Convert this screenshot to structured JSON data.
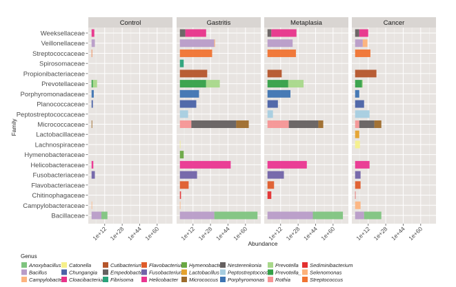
{
  "chart_data": {
    "type": "bar",
    "orientation": "horizontal",
    "stacked": true,
    "xlabel": "Abundance",
    "ylabel": "Family",
    "legend_title": "Genus",
    "legend_position": "bottom",
    "x_scale_note": "values are exponents (log10 abundance) per stacked segment",
    "xlim": [
      -3,
      74
    ],
    "xticks": [
      12,
      28,
      44,
      60
    ],
    "xtick_labels": [
      "1e+12",
      "1e+28",
      "1e+44",
      "1e+60"
    ],
    "facets": [
      "Control",
      "Gastritis",
      "Metaplasia",
      "Cancer"
    ],
    "families": [
      "Weeksellaceae",
      "Veillonellaceae",
      "Streptococcaceae",
      "Spirosomaceae",
      "Propionibacteriaceae",
      "Prevotellaceae",
      "Porphyromonadaceae",
      "Planococcaceae",
      "Peptostreptococcaceae",
      "Micrococcaceae",
      "Lactobacillaceae",
      "Lachnospiraceae",
      "Hymenobacteraceae",
      "Helicobacteraceae",
      "Fusobacteriaceae",
      "Flavobacteriaceae",
      "Chitinophagaceae",
      "Campylobacteraceae",
      "Bacillaceae"
    ],
    "genera": [
      {
        "name": "Anoxybacillus",
        "color": "#7fc47f"
      },
      {
        "name": "Bacillus",
        "color": "#b89cc8"
      },
      {
        "name": "Campylobacter",
        "color": "#fdb47f"
      },
      {
        "name": "Catonella",
        "color": "#f6f08a"
      },
      {
        "name": "Chungangia",
        "color": "#4a62a6"
      },
      {
        "name": "Cloacibacterium",
        "color": "#e8338a"
      },
      {
        "name": "Cutibacterium",
        "color": "#b5552b"
      },
      {
        "name": "Empedobacter",
        "color": "#666060"
      },
      {
        "name": "Fibrisoma",
        "color": "#2aa27a"
      },
      {
        "name": "Flavobacterium",
        "color": "#df5c2b"
      },
      {
        "name": "Fusobacterium",
        "color": "#7163a8"
      },
      {
        "name": "Helicobacter",
        "color": "#ea3590"
      },
      {
        "name": "Hymenobacter",
        "color": "#6aa843"
      },
      {
        "name": "Lactobacillus",
        "color": "#e5a22d"
      },
      {
        "name": "Micrococcus",
        "color": "#9e6b2b"
      },
      {
        "name": "Nesterenkonia",
        "color": "#656060"
      },
      {
        "name": "Peptostreptococcus",
        "color": "#a6cde0"
      },
      {
        "name": "Porphyromonas",
        "color": "#3e74b2"
      },
      {
        "name": "Prevotella",
        "color": "#a8d88a"
      },
      {
        "name": "Prevotella_7",
        "color": "#34a047"
      },
      {
        "name": "Rothia",
        "color": "#f59595"
      },
      {
        "name": "Sediminibacterium",
        "color": "#e33030"
      },
      {
        "name": "Selenomonas",
        "color": "#fdb27a"
      },
      {
        "name": "Streptococcus",
        "color": "#f07331"
      }
    ],
    "data": {
      "Control": {
        "Weeksellaceae": [
          [
            "Cloacibacterium",
            2.5
          ]
        ],
        "Veillonellaceae": [
          [
            "Bacillus",
            3
          ]
        ],
        "Streptococcaceae": [
          [
            "Streptococcus",
            0.5
          ]
        ],
        "Prevotellaceae": [
          [
            "Prevotella_7",
            1.2
          ],
          [
            "Prevotella",
            3.8
          ]
        ],
        "Porphyromonadaceae": [
          [
            "Porphyromonas",
            2
          ]
        ],
        "Planococcaceae": [
          [
            "Chungangia",
            1.2
          ]
        ],
        "Micrococcaceae": [
          [
            "Micrococcus",
            0.6
          ]
        ],
        "Helicobacteraceae": [
          [
            "Helicobacter",
            1.6
          ]
        ],
        "Fusobacteriaceae": [
          [
            "Fusobacterium",
            3
          ]
        ],
        "Campylobacteraceae": [
          [
            "Campylobacter",
            0.5
          ]
        ],
        "Bacillaceae": [
          [
            "Bacillus",
            9
          ],
          [
            "Anoxybacillus",
            5.5
          ]
        ]
      },
      "Gastritis": {
        "Weeksellaceae": [
          [
            "Empedobacter",
            5
          ],
          [
            "Cloacibacterium",
            19
          ]
        ],
        "Veillonellaceae": [
          [
            "Bacillus",
            31.5
          ],
          [
            "Selenomonas",
            0.7
          ]
        ],
        "Streptococcaceae": [
          [
            "Streptococcus",
            29.5
          ]
        ],
        "Spirosomaceae": [
          [
            "Fibrisoma",
            3.5
          ]
        ],
        "Propionibacteriaceae": [
          [
            "Cutibacterium",
            25
          ]
        ],
        "Prevotellaceae": [
          [
            "Prevotella_7",
            24
          ],
          [
            "Prevotella",
            12.5
          ]
        ],
        "Porphyromonadaceae": [
          [
            "Porphyromonas",
            17.5
          ]
        ],
        "Planococcaceae": [
          [
            "Chungangia",
            15
          ]
        ],
        "Peptostreptococcaceae": [
          [
            "Peptostreptococcus",
            7.5
          ]
        ],
        "Micrococcaceae": [
          [
            "Rothia",
            10.5
          ],
          [
            "Nesterenkonia",
            41
          ],
          [
            "Micrococcus",
            11.5
          ]
        ],
        "Lachnospiraceae": [
          [
            "Catonella",
            0.5
          ]
        ],
        "Hymenobacteraceae": [
          [
            "Hymenobacter",
            3.5
          ]
        ],
        "Helicobacteraceae": [
          [
            "Helicobacter",
            46.5
          ]
        ],
        "Fusobacteriaceae": [
          [
            "Fusobacterium",
            15.7
          ]
        ],
        "Flavobacteriaceae": [
          [
            "Flavobacterium",
            8
          ]
        ],
        "Chitinophagaceae": [
          [
            "Sediminibacterium",
            1
          ]
        ],
        "Campylobacteraceae": [
          [
            "Campylobacter",
            0.5
          ]
        ],
        "Bacillaceae": [
          [
            "Bacillus",
            31.5
          ],
          [
            "Anoxybacillus",
            39.5
          ]
        ]
      },
      "Metaplasia": {
        "Weeksellaceae": [
          [
            "Empedobacter",
            3.5
          ],
          [
            "Cloacibacterium",
            23
          ]
        ],
        "Veillonellaceae": [
          [
            "Bacillus",
            23
          ]
        ],
        "Streptococcaceae": [
          [
            "Streptococcus",
            26
          ]
        ],
        "Propionibacteriaceae": [
          [
            "Cutibacterium",
            13
          ]
        ],
        "Prevotellaceae": [
          [
            "Prevotella_7",
            19
          ],
          [
            "Prevotella",
            14
          ]
        ],
        "Porphyromonadaceae": [
          [
            "Porphyromonas",
            21
          ]
        ],
        "Planococcaceae": [
          [
            "Chungangia",
            9.5
          ]
        ],
        "Peptostreptococcaceae": [
          [
            "Peptostreptococcus",
            5
          ]
        ],
        "Micrococcaceae": [
          [
            "Rothia",
            19.5
          ],
          [
            "Nesterenkonia",
            27
          ],
          [
            "Micrococcus",
            4.5
          ]
        ],
        "Helicobacteraceae": [
          [
            "Helicobacter",
            36
          ]
        ],
        "Fusobacteriaceae": [
          [
            "Fusobacterium",
            15
          ]
        ],
        "Flavobacteriaceae": [
          [
            "Flavobacterium",
            6
          ]
        ],
        "Chitinophagaceae": [
          [
            "Sediminibacterium",
            3.5
          ]
        ],
        "Bacillaceae": [
          [
            "Bacillus",
            41.5
          ],
          [
            "Anoxybacillus",
            27.5
          ]
        ]
      },
      "Cancer": {
        "Weeksellaceae": [
          [
            "Empedobacter",
            3.8
          ],
          [
            "Cloacibacterium",
            8.2
          ]
        ],
        "Veillonellaceae": [
          [
            "Bacillus",
            7
          ],
          [
            "Selenomonas",
            4.3
          ]
        ],
        "Streptococcaceae": [
          [
            "Streptococcus",
            14
          ]
        ],
        "Propionibacteriaceae": [
          [
            "Cutibacterium",
            19.5
          ]
        ],
        "Prevotellaceae": [
          [
            "Prevotella_7",
            6.3
          ],
          [
            "Prevotella",
            0.7
          ]
        ],
        "Porphyromonadaceae": [
          [
            "Porphyromonas",
            3.8
          ]
        ],
        "Planococcaceae": [
          [
            "Chungangia",
            8.2
          ]
        ],
        "Peptostreptococcaceae": [
          [
            "Peptostreptococcus",
            13.2
          ]
        ],
        "Micrococcaceae": [
          [
            "Rothia",
            3.8
          ],
          [
            "Nesterenkonia",
            13.8
          ],
          [
            "Micrococcus",
            6.4
          ]
        ],
        "Lactobacillaceae": [
          [
            "Lactobacillus",
            3.8
          ]
        ],
        "Lachnospiraceae": [
          [
            "Catonella",
            4.4
          ]
        ],
        "Helicobacteraceae": [
          [
            "Helicobacter",
            13.2
          ]
        ],
        "Fusobacteriaceae": [
          [
            "Fusobacterium",
            5
          ]
        ],
        "Flavobacteriaceae": [
          [
            "Flavobacterium",
            5
          ]
        ],
        "Chitinophagaceae": [
          [
            "Sediminibacterium",
            0.3
          ]
        ],
        "Campylobacteraceae": [
          [
            "Campylobacter",
            5
          ]
        ],
        "Bacillaceae": [
          [
            "Bacillus",
            8.2
          ],
          [
            "Anoxybacillus",
            15.8
          ]
        ]
      }
    }
  }
}
